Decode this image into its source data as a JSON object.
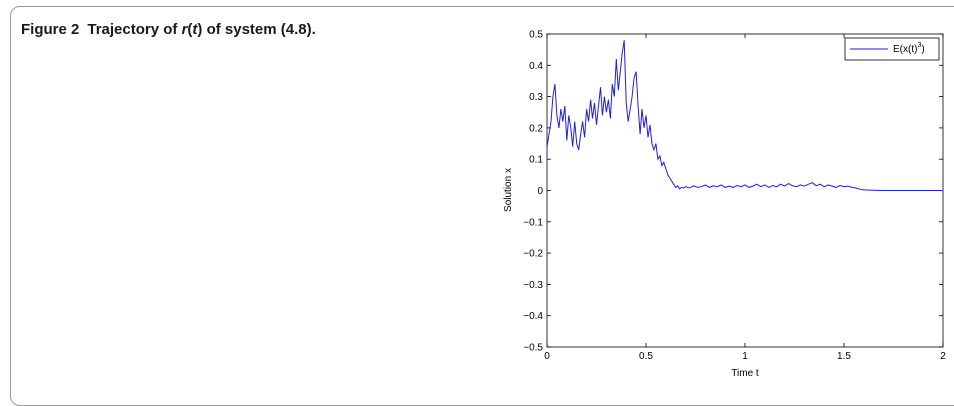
{
  "caption": {
    "number": "Figure 2",
    "text_before": "Trajectory of ",
    "var_r": "r",
    "paren_open": "(",
    "var_t": "t",
    "text_after": ") of system (4.8)."
  },
  "chart_data": {
    "type": "line",
    "title": "",
    "xlabel": "Time t",
    "ylabel": "Solution x",
    "xlim": [
      0,
      2
    ],
    "ylim": [
      -0.5,
      0.5
    ],
    "xticks": [
      "0",
      "0.5",
      "1",
      "1.5",
      "2"
    ],
    "yticks": [
      "0.5",
      "0.4",
      "0.3",
      "0.2",
      "0.1",
      "0",
      "−0.1",
      "−0.2",
      "−0.3",
      "−0.4",
      "−0.5"
    ],
    "legend_position": "top-right",
    "legend": {
      "base": "E(x(t)",
      "sup": "3",
      "close": ")"
    },
    "grid": false,
    "series": [
      {
        "name": "E(x(t)^3)",
        "color": "#1f1fd6",
        "x": [
          0,
          0.01,
          0.02,
          0.03,
          0.04,
          0.05,
          0.06,
          0.07,
          0.08,
          0.09,
          0.1,
          0.11,
          0.12,
          0.13,
          0.14,
          0.15,
          0.16,
          0.17,
          0.18,
          0.19,
          0.2,
          0.21,
          0.22,
          0.23,
          0.24,
          0.25,
          0.26,
          0.27,
          0.28,
          0.29,
          0.3,
          0.31,
          0.32,
          0.33,
          0.34,
          0.35,
          0.36,
          0.37,
          0.38,
          0.39,
          0.4,
          0.41,
          0.42,
          0.43,
          0.44,
          0.45,
          0.46,
          0.47,
          0.48,
          0.49,
          0.5,
          0.51,
          0.52,
          0.53,
          0.54,
          0.55,
          0.56,
          0.57,
          0.58,
          0.59,
          0.6,
          0.61,
          0.62,
          0.63,
          0.64,
          0.65,
          0.66,
          0.67,
          0.68,
          0.69,
          0.7,
          0.72,
          0.74,
          0.76,
          0.78,
          0.8,
          0.82,
          0.84,
          0.86,
          0.88,
          0.9,
          0.92,
          0.94,
          0.96,
          0.98,
          1.0,
          1.02,
          1.04,
          1.06,
          1.08,
          1.1,
          1.12,
          1.14,
          1.16,
          1.18,
          1.2,
          1.22,
          1.24,
          1.26,
          1.28,
          1.3,
          1.32,
          1.34,
          1.36,
          1.38,
          1.4,
          1.42,
          1.44,
          1.46,
          1.48,
          1.5,
          1.52,
          1.54,
          1.56,
          1.58,
          1.6,
          1.65,
          1.7,
          1.75,
          1.8,
          1.85,
          1.9,
          1.95,
          2.0
        ],
        "y": [
          0.14,
          0.18,
          0.22,
          0.3,
          0.34,
          0.24,
          0.2,
          0.26,
          0.22,
          0.27,
          0.16,
          0.24,
          0.2,
          0.14,
          0.22,
          0.15,
          0.13,
          0.18,
          0.22,
          0.17,
          0.26,
          0.22,
          0.29,
          0.23,
          0.28,
          0.21,
          0.27,
          0.33,
          0.24,
          0.3,
          0.25,
          0.29,
          0.23,
          0.34,
          0.3,
          0.42,
          0.32,
          0.38,
          0.44,
          0.48,
          0.28,
          0.22,
          0.26,
          0.3,
          0.36,
          0.38,
          0.27,
          0.18,
          0.26,
          0.2,
          0.24,
          0.17,
          0.21,
          0.15,
          0.13,
          0.15,
          0.1,
          0.11,
          0.08,
          0.09,
          0.07,
          0.05,
          0.04,
          0.03,
          0.02,
          0.01,
          0.015,
          0.005,
          0.01,
          0.008,
          0.012,
          0.008,
          0.015,
          0.01,
          0.012,
          0.018,
          0.01,
          0.015,
          0.012,
          0.018,
          0.01,
          0.014,
          0.01,
          0.016,
          0.012,
          0.018,
          0.01,
          0.014,
          0.02,
          0.012,
          0.018,
          0.01,
          0.016,
          0.012,
          0.02,
          0.014,
          0.022,
          0.015,
          0.012,
          0.018,
          0.014,
          0.02,
          0.025,
          0.015,
          0.02,
          0.012,
          0.018,
          0.014,
          0.01,
          0.016,
          0.012,
          0.014,
          0.01,
          0.008,
          0.004,
          0.002,
          0.001,
          0.0,
          0.0,
          0.0,
          0.0,
          0.0,
          0.0,
          0.0
        ]
      }
    ]
  }
}
